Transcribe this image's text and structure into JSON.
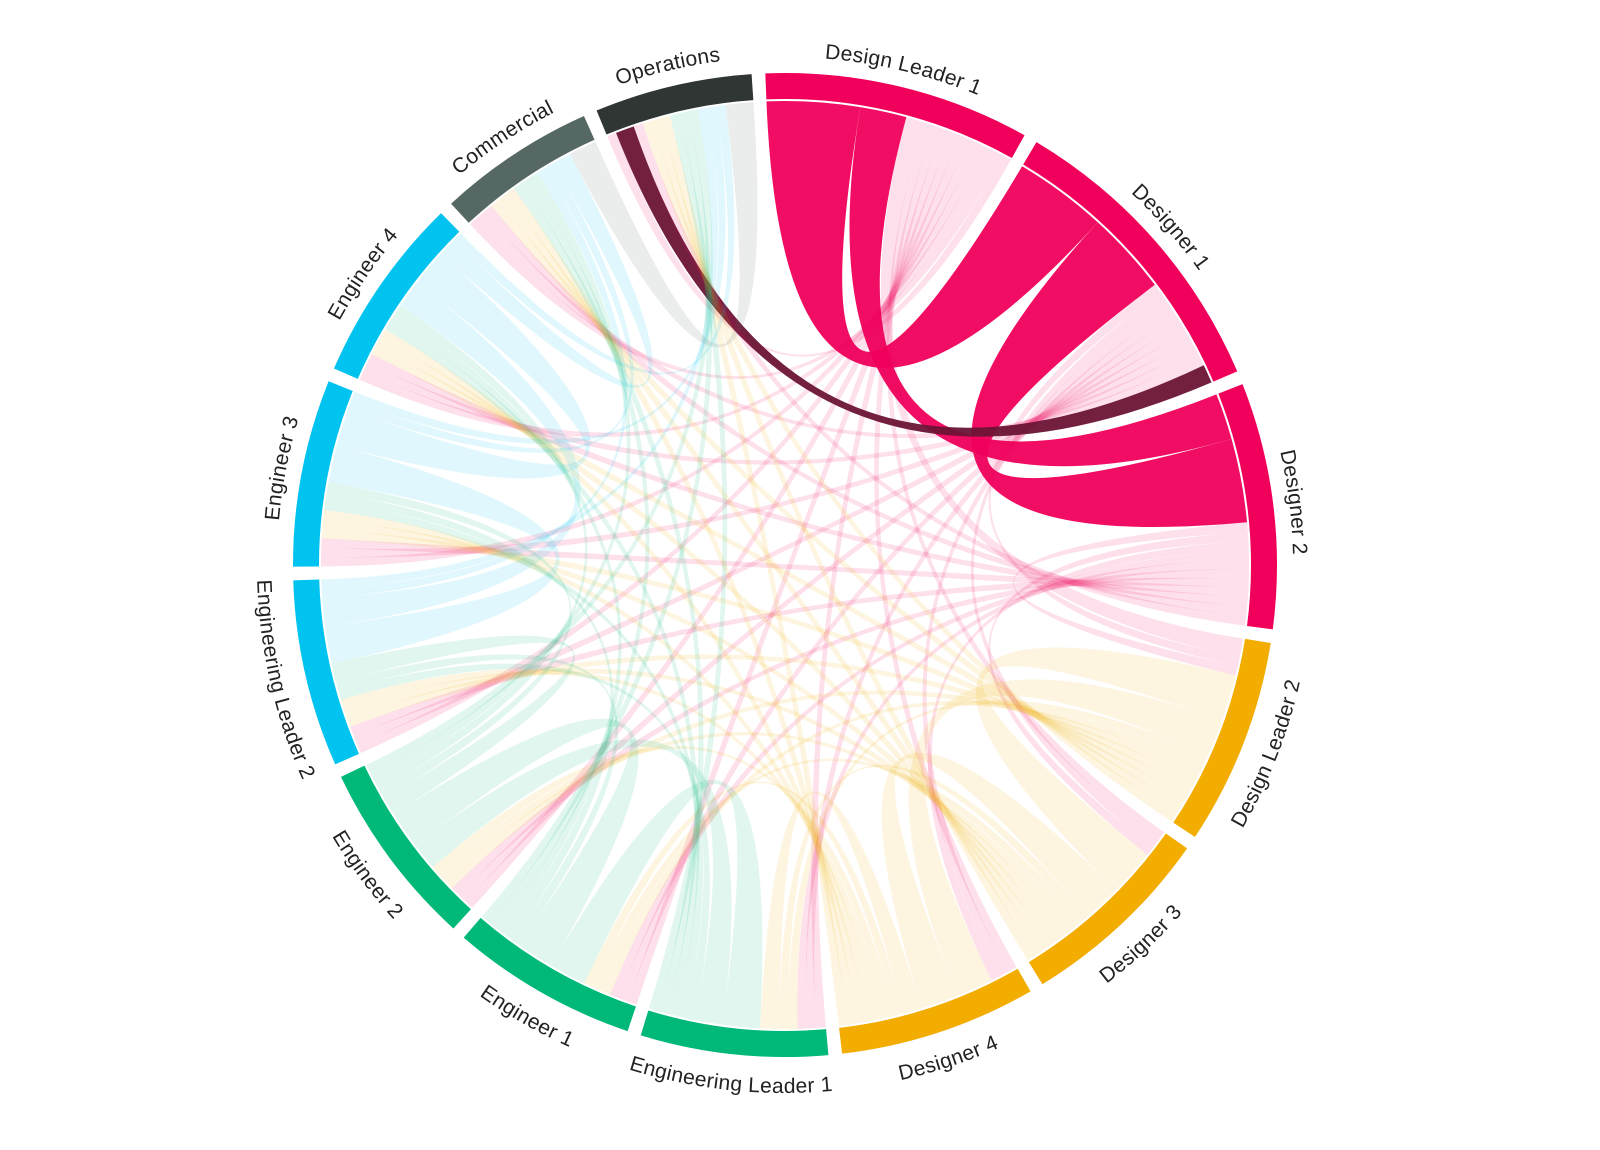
{
  "chart_data": {
    "type": "chord",
    "groups": [
      {
        "name": "Design Leader 1",
        "color": "#f0005b"
      },
      {
        "name": "Designer 1",
        "color": "#f0005b"
      },
      {
        "name": "Designer 2",
        "color": "#f0005b"
      },
      {
        "name": "Design Leader 2",
        "color": "#f2ad00"
      },
      {
        "name": "Designer 3",
        "color": "#f2ad00"
      },
      {
        "name": "Designer 4",
        "color": "#f2ad00"
      },
      {
        "name": "Engineering Leader 1",
        "color": "#00b877"
      },
      {
        "name": "Engineer 1",
        "color": "#00b877"
      },
      {
        "name": "Engineer 2",
        "color": "#00b877"
      },
      {
        "name": "Engineering Leader 2",
        "color": "#00c3ef"
      },
      {
        "name": "Engineer 3",
        "color": "#00c3ef"
      },
      {
        "name": "Engineer 4",
        "color": "#00c3ef"
      },
      {
        "name": "Commercial",
        "color": "#566864"
      },
      {
        "name": "Operations",
        "color": "#2f3634"
      }
    ],
    "matrix": [
      [
        0,
        10,
        5,
        2,
        1,
        1,
        1,
        1,
        1,
        1,
        1,
        1,
        1,
        1
      ],
      [
        10,
        0,
        9,
        1,
        1,
        1,
        1,
        1,
        1,
        1,
        1,
        1,
        1,
        2
      ],
      [
        5,
        9,
        0,
        1,
        1,
        1,
        1,
        1,
        1,
        1,
        1,
        1,
        1,
        1
      ],
      [
        2,
        1,
        1,
        0,
        5,
        4,
        1,
        1,
        1,
        1,
        1,
        1,
        1,
        1
      ],
      [
        1,
        1,
        1,
        5,
        0,
        4,
        1,
        1,
        1,
        1,
        1,
        1,
        1,
        1
      ],
      [
        1,
        1,
        1,
        4,
        4,
        0,
        2,
        1,
        1,
        1,
        1,
        1,
        1,
        1
      ],
      [
        1,
        1,
        1,
        1,
        1,
        2,
        0,
        4,
        3,
        1,
        1,
        1,
        1,
        1
      ],
      [
        1,
        1,
        1,
        1,
        1,
        1,
        4,
        0,
        4,
        1,
        1,
        1,
        1,
        1
      ],
      [
        1,
        1,
        1,
        1,
        1,
        1,
        3,
        4,
        0,
        2,
        1,
        1,
        1,
        1
      ],
      [
        1,
        1,
        1,
        1,
        1,
        1,
        1,
        1,
        2,
        0,
        4,
        3,
        1,
        1
      ],
      [
        1,
        1,
        1,
        1,
        1,
        1,
        1,
        1,
        1,
        4,
        0,
        4,
        1,
        1
      ],
      [
        1,
        1,
        1,
        1,
        1,
        1,
        1,
        1,
        1,
        3,
        4,
        0,
        2,
        1
      ],
      [
        1,
        1,
        1,
        1,
        1,
        1,
        1,
        1,
        1,
        1,
        1,
        2,
        0,
        3
      ],
      [
        1,
        2,
        1,
        1,
        1,
        1,
        1,
        1,
        1,
        1,
        1,
        1,
        3,
        0
      ]
    ],
    "highlighted_group": "Designer 1"
  }
}
